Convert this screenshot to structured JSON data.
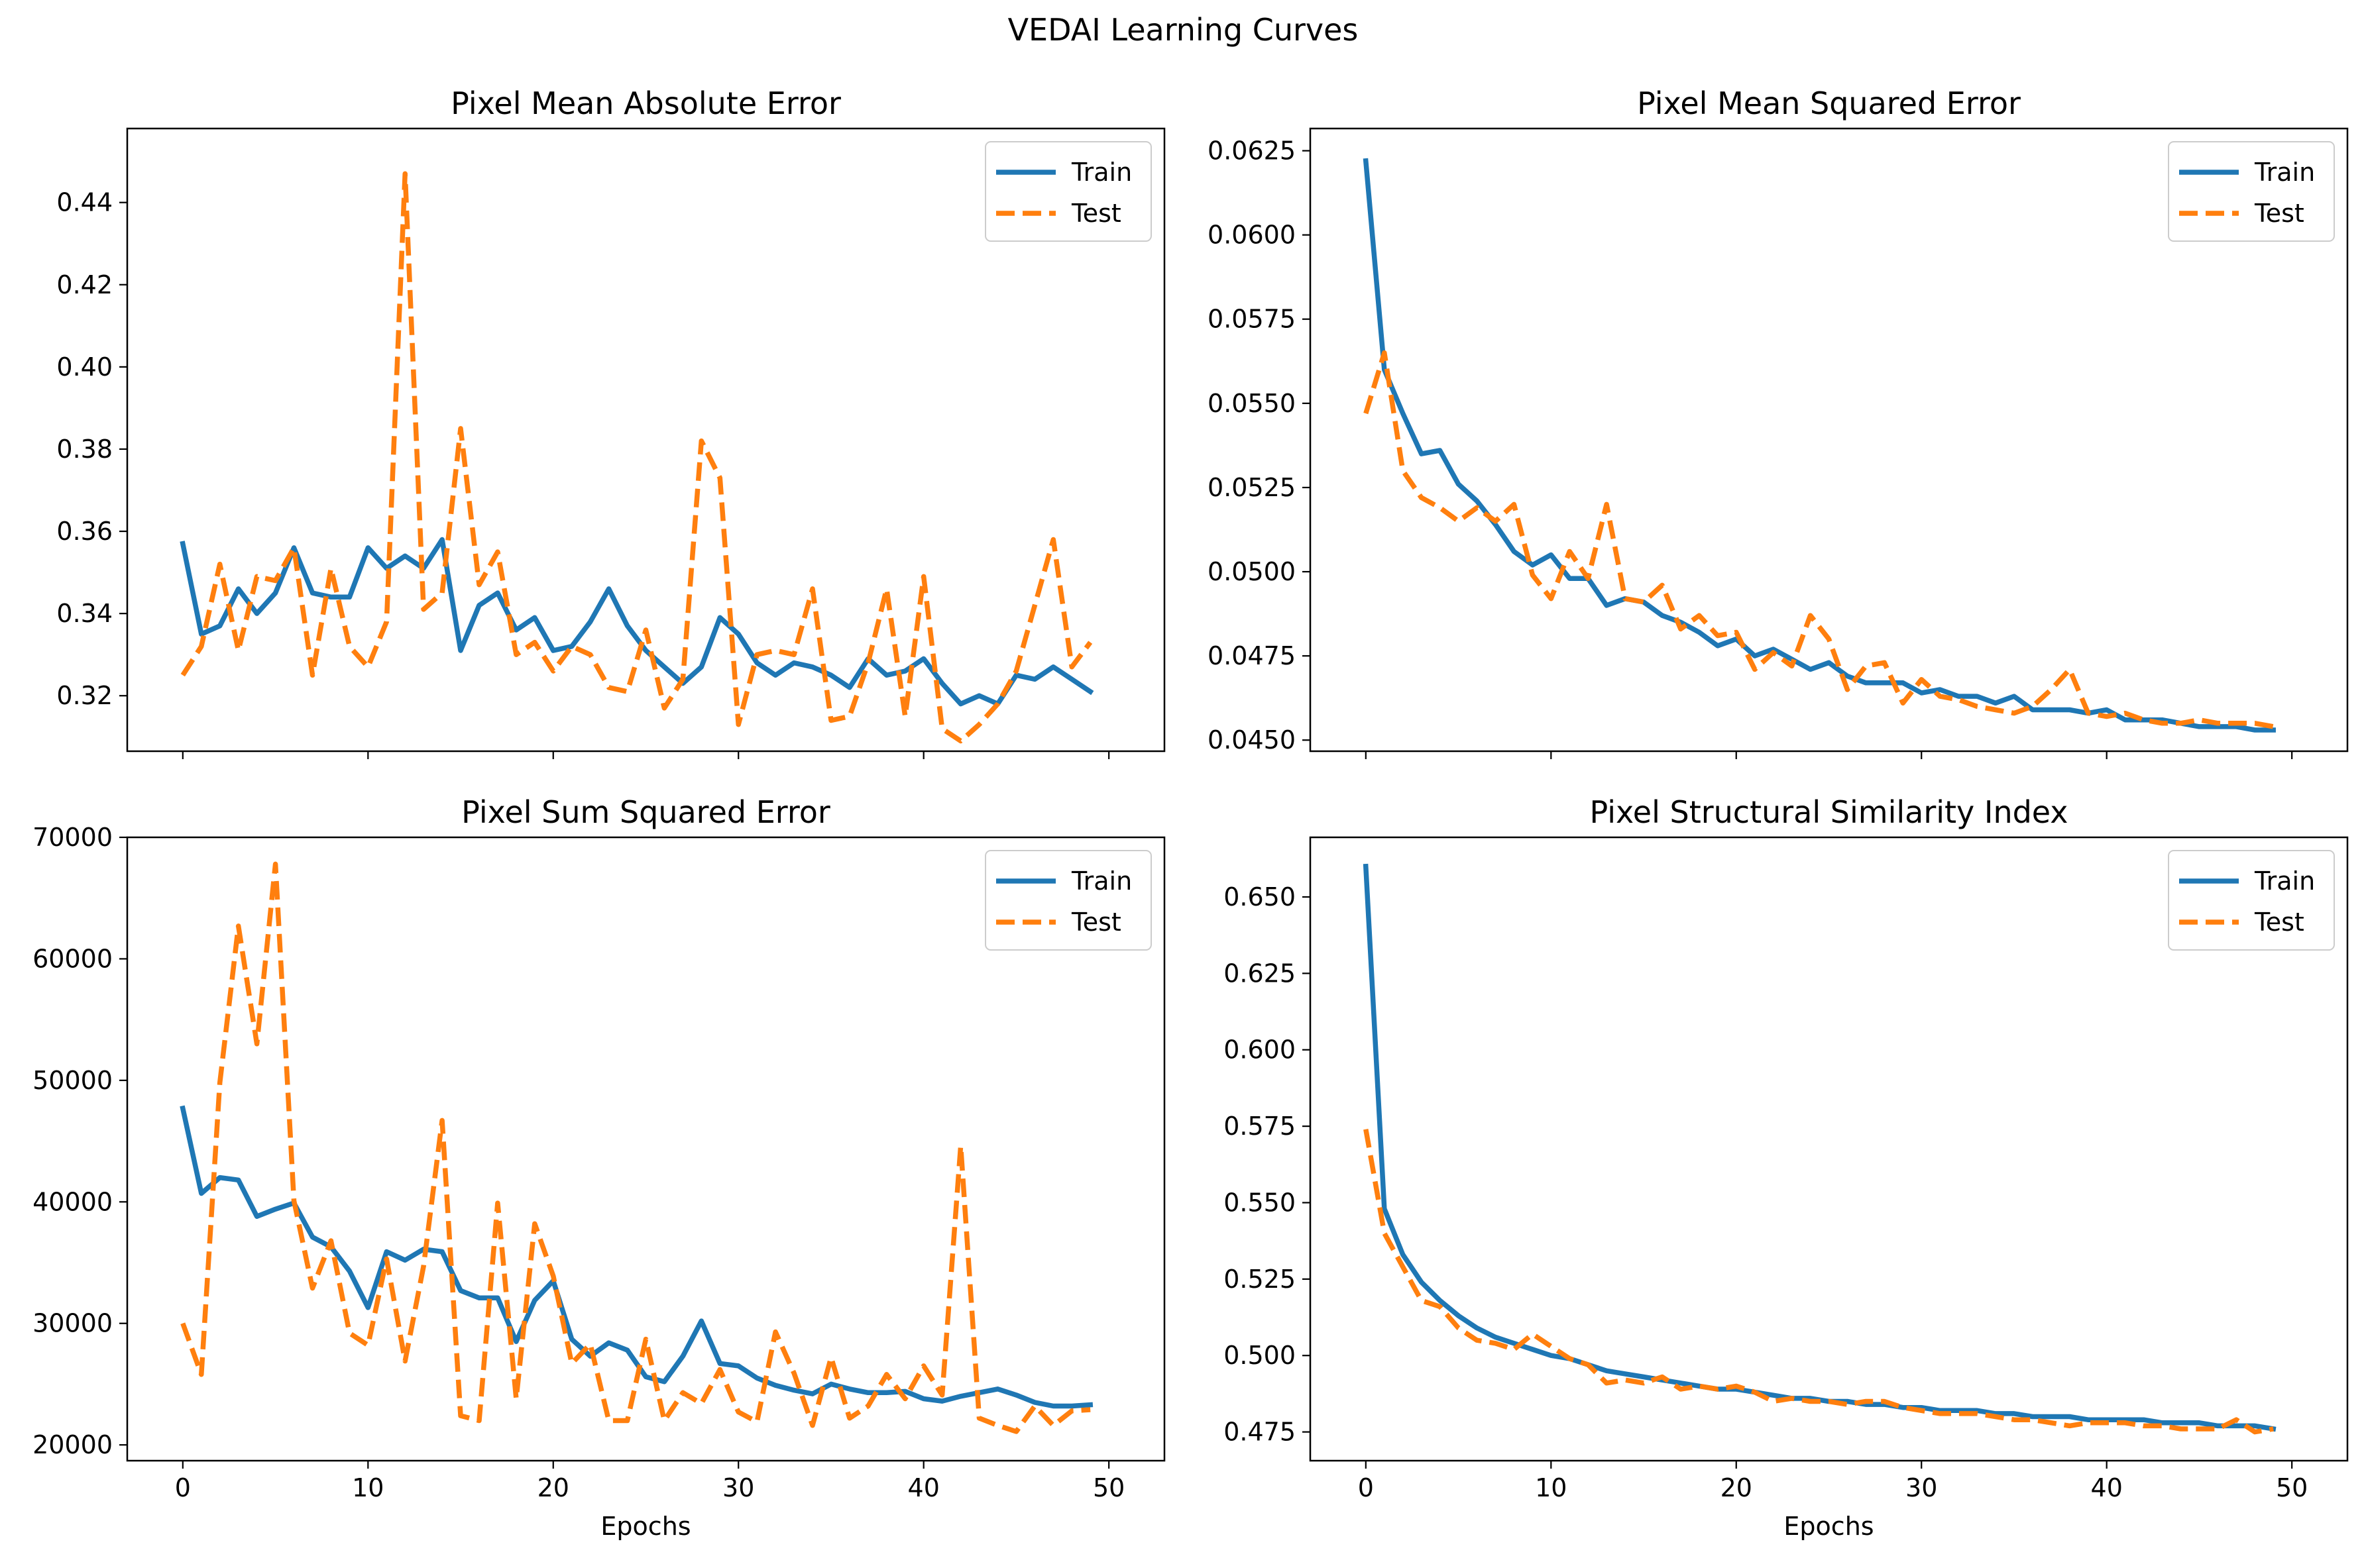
{
  "figure": {
    "title": "VEDAI Learning Curves"
  },
  "colors": {
    "train": "#1f77b4",
    "test": "#ff7f0e"
  },
  "chart_data": [
    {
      "type": "line",
      "title": "Pixel Mean Absolute Error",
      "xlabel": "",
      "ylabel": "",
      "xlim": [
        -3,
        53
      ],
      "ylim": [
        0.3065,
        0.458
      ],
      "xticks": [
        0,
        10,
        20,
        30,
        40,
        50
      ],
      "show_xtick_labels": false,
      "yticks": [
        0.32,
        0.34,
        0.36,
        0.38,
        0.4,
        0.42,
        0.44
      ],
      "ytick_labels": [
        "0.32",
        "0.34",
        "0.36",
        "0.38",
        "0.40",
        "0.42",
        "0.44"
      ],
      "legend": "upper right",
      "grid": false,
      "series": [
        {
          "name": "Train",
          "style": "solid",
          "color": "#1f77b4",
          "values": [
            0.357,
            0.335,
            0.337,
            0.346,
            0.34,
            0.345,
            0.356,
            0.345,
            0.344,
            0.344,
            0.356,
            0.351,
            0.354,
            0.351,
            0.358,
            0.331,
            0.342,
            0.345,
            0.336,
            0.339,
            0.331,
            0.332,
            0.338,
            0.346,
            0.337,
            0.331,
            0.327,
            0.323,
            0.327,
            0.339,
            0.335,
            0.328,
            0.325,
            0.328,
            0.327,
            0.325,
            0.322,
            0.329,
            0.325,
            0.326,
            0.329,
            0.323,
            0.318,
            0.32,
            0.318,
            0.325,
            0.324,
            0.327,
            0.324,
            0.321
          ]
        },
        {
          "name": "Test",
          "style": "dashed",
          "color": "#ff7f0e",
          "values": [
            0.325,
            0.332,
            0.352,
            0.331,
            0.349,
            0.348,
            0.356,
            0.325,
            0.351,
            0.332,
            0.327,
            0.338,
            0.447,
            0.341,
            0.345,
            0.385,
            0.347,
            0.355,
            0.33,
            0.333,
            0.326,
            0.332,
            0.33,
            0.322,
            0.321,
            0.336,
            0.317,
            0.324,
            0.382,
            0.373,
            0.313,
            0.33,
            0.331,
            0.33,
            0.346,
            0.314,
            0.315,
            0.328,
            0.346,
            0.315,
            0.349,
            0.312,
            0.309,
            0.313,
            0.318,
            0.326,
            0.342,
            0.358,
            0.327,
            0.333
          ]
        }
      ]
    },
    {
      "type": "line",
      "title": "Pixel Mean Squared Error",
      "xlabel": "",
      "ylabel": "",
      "xlim": [
        -3,
        53
      ],
      "ylim": [
        0.04467,
        0.06316
      ],
      "xticks": [
        0,
        10,
        20,
        30,
        40,
        50
      ],
      "show_xtick_labels": false,
      "yticks": [
        0.045,
        0.0475,
        0.05,
        0.0525,
        0.055,
        0.0575,
        0.06,
        0.0625
      ],
      "ytick_labels": [
        "0.0450",
        "0.0475",
        "0.0500",
        "0.0525",
        "0.0550",
        "0.0575",
        "0.0600",
        "0.0625"
      ],
      "legend": "upper right",
      "grid": false,
      "series": [
        {
          "name": "Train",
          "style": "solid",
          "color": "#1f77b4",
          "values": [
            0.0622,
            0.056,
            0.0547,
            0.0535,
            0.0536,
            0.0526,
            0.0521,
            0.0514,
            0.0506,
            0.0502,
            0.0505,
            0.0498,
            0.0498,
            0.049,
            0.0492,
            0.0491,
            0.0487,
            0.0485,
            0.0482,
            0.0478,
            0.048,
            0.0475,
            0.0477,
            0.0474,
            0.0471,
            0.0473,
            0.0469,
            0.0467,
            0.0467,
            0.0467,
            0.0464,
            0.0465,
            0.0463,
            0.0463,
            0.0461,
            0.0463,
            0.0459,
            0.0459,
            0.0459,
            0.0458,
            0.0459,
            0.0456,
            0.0456,
            0.0456,
            0.0455,
            0.0454,
            0.0454,
            0.0454,
            0.0453,
            0.0453
          ]
        },
        {
          "name": "Test",
          "style": "dashed",
          "color": "#ff7f0e",
          "values": [
            0.0547,
            0.0565,
            0.053,
            0.0522,
            0.0519,
            0.0515,
            0.0519,
            0.0515,
            0.052,
            0.0499,
            0.0492,
            0.0506,
            0.0498,
            0.052,
            0.0492,
            0.0491,
            0.0496,
            0.0483,
            0.0487,
            0.0481,
            0.0482,
            0.0471,
            0.0476,
            0.0472,
            0.0487,
            0.048,
            0.0465,
            0.0472,
            0.0473,
            0.0461,
            0.0468,
            0.0463,
            0.0462,
            0.046,
            0.0459,
            0.0458,
            0.046,
            0.0465,
            0.0471,
            0.0458,
            0.0457,
            0.0458,
            0.0456,
            0.0455,
            0.0455,
            0.0456,
            0.0455,
            0.0455,
            0.0455,
            0.0454
          ]
        }
      ]
    },
    {
      "type": "line",
      "title": "Pixel Sum Squared Error",
      "xlabel": "Epochs",
      "ylabel": "",
      "xlim": [
        -3,
        53
      ],
      "ylim": [
        18700,
        70000
      ],
      "xticks": [
        0,
        10,
        20,
        30,
        40,
        50
      ],
      "xtick_labels": [
        "0",
        "10",
        "20",
        "30",
        "40",
        "50"
      ],
      "show_xtick_labels": true,
      "yticks": [
        20000,
        30000,
        40000,
        50000,
        60000,
        70000
      ],
      "ytick_labels": [
        "20000",
        "30000",
        "40000",
        "50000",
        "60000",
        "70000"
      ],
      "legend": "upper right",
      "grid": false,
      "series": [
        {
          "name": "Train",
          "style": "solid",
          "color": "#1f77b4",
          "values": [
            47700,
            40700,
            42000,
            41800,
            38800,
            39400,
            39900,
            37100,
            36300,
            34300,
            31300,
            35900,
            35200,
            36100,
            35900,
            32700,
            32100,
            32100,
            28500,
            31900,
            33500,
            28700,
            27300,
            28400,
            27800,
            25600,
            25200,
            27300,
            30200,
            26700,
            26500,
            25500,
            24900,
            24500,
            24200,
            25000,
            24600,
            24300,
            24300,
            24400,
            23800,
            23600,
            24000,
            24300,
            24600,
            24100,
            23500,
            23200,
            23200,
            23300
          ]
        },
        {
          "name": "Test",
          "style": "dashed",
          "color": "#ff7f0e",
          "values": [
            30000,
            25800,
            49800,
            62700,
            53000,
            67800,
            40100,
            32900,
            36800,
            29200,
            28200,
            35300,
            26900,
            34700,
            46700,
            22400,
            22000,
            39900,
            23800,
            38200,
            33900,
            26700,
            28300,
            22000,
            22000,
            28700,
            22000,
            24300,
            23400,
            26200,
            22700,
            21900,
            29300,
            25900,
            21600,
            27200,
            22200,
            23200,
            25800,
            23800,
            26500,
            24100,
            44600,
            22200,
            21600,
            21100,
            23200,
            21600,
            22800,
            22900
          ]
        }
      ]
    },
    {
      "type": "line",
      "title": "Pixel Structural Similarity Index",
      "xlabel": "Epochs",
      "ylabel": "",
      "xlim": [
        -3,
        53
      ],
      "ylim": [
        0.4656,
        0.6695
      ],
      "xticks": [
        0,
        10,
        20,
        30,
        40,
        50
      ],
      "xtick_labels": [
        "0",
        "10",
        "20",
        "30",
        "40",
        "50"
      ],
      "show_xtick_labels": true,
      "yticks": [
        0.475,
        0.5,
        0.525,
        0.55,
        0.575,
        0.6,
        0.625,
        0.65
      ],
      "ytick_labels": [
        "0.475",
        "0.500",
        "0.525",
        "0.550",
        "0.575",
        "0.600",
        "0.625",
        "0.650"
      ],
      "legend": "upper right",
      "grid": false,
      "series": [
        {
          "name": "Train",
          "style": "solid",
          "color": "#1f77b4",
          "values": [
            0.66,
            0.548,
            0.533,
            0.524,
            0.518,
            0.513,
            0.509,
            0.506,
            0.504,
            0.502,
            0.5,
            0.499,
            0.497,
            0.495,
            0.494,
            0.493,
            0.492,
            0.491,
            0.49,
            0.489,
            0.489,
            0.488,
            0.487,
            0.486,
            0.486,
            0.485,
            0.485,
            0.484,
            0.484,
            0.483,
            0.483,
            0.482,
            0.482,
            0.482,
            0.481,
            0.481,
            0.48,
            0.48,
            0.48,
            0.479,
            0.479,
            0.479,
            0.479,
            0.478,
            0.478,
            0.478,
            0.477,
            0.477,
            0.477,
            0.476
          ]
        },
        {
          "name": "Test",
          "style": "dashed",
          "color": "#ff7f0e",
          "values": [
            0.574,
            0.54,
            0.529,
            0.518,
            0.516,
            0.509,
            0.505,
            0.504,
            0.502,
            0.507,
            0.503,
            0.499,
            0.497,
            0.491,
            0.492,
            0.491,
            0.493,
            0.489,
            0.49,
            0.489,
            0.49,
            0.488,
            0.485,
            0.486,
            0.485,
            0.485,
            0.484,
            0.485,
            0.485,
            0.483,
            0.482,
            0.481,
            0.481,
            0.481,
            0.48,
            0.479,
            0.479,
            0.478,
            0.477,
            0.478,
            0.478,
            0.478,
            0.477,
            0.477,
            0.476,
            0.476,
            0.476,
            0.479,
            0.475,
            0.476
          ]
        }
      ]
    }
  ]
}
